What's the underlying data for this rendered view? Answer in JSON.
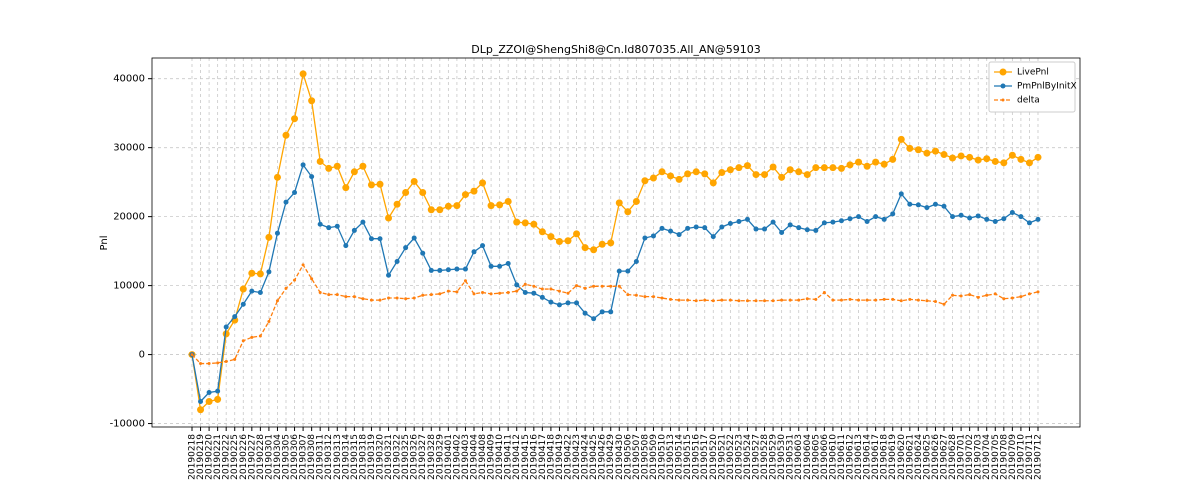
{
  "chart_data": {
    "type": "line",
    "title": "DLp_ZZOI@ShengShi8@Cn.Id807035.All_AN@59103",
    "y_label": "Pnl",
    "categories": [
      "20190218",
      "20190219",
      "20190220",
      "20190221",
      "20190222",
      "20190225",
      "20190226",
      "20190227",
      "20190228",
      "20190301",
      "20190304",
      "20190305",
      "20190306",
      "20190307",
      "20190308",
      "20190311",
      "20190312",
      "20190313",
      "20190314",
      "20190315",
      "20190318",
      "20190319",
      "20190320",
      "20190321",
      "20190322",
      "20190325",
      "20190326",
      "20190327",
      "20190328",
      "20190329",
      "20190401",
      "20190402",
      "20190403",
      "20190404",
      "20190408",
      "20190409",
      "20190410",
      "20190411",
      "20190412",
      "20190415",
      "20190416",
      "20190417",
      "20190418",
      "20190419",
      "20190422",
      "20190423",
      "20190424",
      "20190425",
      "20190426",
      "20190429",
      "20190430",
      "20190506",
      "20190507",
      "20190508",
      "20190509",
      "20190510",
      "20190513",
      "20190514",
      "20190515",
      "20190516",
      "20190517",
      "20190520",
      "20190521",
      "20190522",
      "20190523",
      "20190524",
      "20190527",
      "20190528",
      "20190529",
      "20190530",
      "20190531",
      "20190603",
      "20190604",
      "20190605",
      "20190606",
      "20190610",
      "20190611",
      "20190612",
      "20190613",
      "20190614",
      "20190617",
      "20190618",
      "20190619",
      "20190620",
      "20190621",
      "20190624",
      "20190625",
      "20190626",
      "20190627",
      "20190628",
      "20190701",
      "20190702",
      "20190703",
      "20190704",
      "20190705",
      "20190708",
      "20190709",
      "20190710",
      "20190711",
      "20190712"
    ],
    "series": [
      {
        "name": "LivePnl",
        "color": "#ffa500",
        "linestyle": "solid",
        "marker_size": 7,
        "values": [
          0,
          -8000,
          -6800,
          -6500,
          3000,
          5000,
          9500,
          11800,
          11700,
          17000,
          25700,
          31800,
          34200,
          40700,
          36800,
          28000,
          27000,
          27300,
          24200,
          26500,
          27300,
          24600,
          24700,
          19800,
          21800,
          23500,
          25100,
          23500,
          21000,
          21000,
          21500,
          21600,
          23200,
          23700,
          24900,
          21600,
          21700,
          22200,
          19200,
          19100,
          18900,
          17800,
          17100,
          16400,
          16500,
          17500,
          15500,
          15200,
          16000,
          16200,
          22000,
          20700,
          22200,
          25200,
          25600,
          26500,
          25900,
          25400,
          26200,
          26500,
          26200,
          24900,
          26400,
          26800,
          27100,
          27400,
          26100,
          26100,
          27200,
          25700,
          26800,
          26500,
          26100,
          27100,
          27100,
          27100,
          27000,
          27500,
          27900,
          27300,
          27900,
          27600,
          28300,
          31200,
          29900,
          29700,
          29200,
          29500,
          29000,
          28500,
          28800,
          28600,
          28200,
          28400,
          28000,
          27800,
          28900,
          28300,
          27800,
          28600
        ]
      },
      {
        "name": "PmPnlByInitX",
        "color": "#1f77b4",
        "linestyle": "solid",
        "marker_size": 5,
        "values": [
          0,
          -6800,
          -5500,
          -5300,
          4000,
          5500,
          7300,
          9200,
          9000,
          12000,
          17600,
          22100,
          23500,
          27500,
          25800,
          18900,
          18400,
          18600,
          15800,
          18000,
          19200,
          16800,
          16800,
          11500,
          13500,
          15500,
          16900,
          14700,
          12200,
          12200,
          12300,
          12400,
          12400,
          14900,
          15800,
          12800,
          12800,
          13200,
          10100,
          9000,
          8900,
          8300,
          7600,
          7200,
          7500,
          7500,
          6000,
          5200,
          6200,
          6200,
          12100,
          12100,
          13500,
          16900,
          17200,
          18300,
          17900,
          17400,
          18300,
          18500,
          18400,
          17100,
          18500,
          19000,
          19300,
          19600,
          18200,
          18200,
          19200,
          17700,
          18800,
          18400,
          18100,
          18000,
          19100,
          19200,
          19400,
          19700,
          20000,
          19300,
          20000,
          19600,
          20400,
          23300,
          21800,
          21700,
          21300,
          21800,
          21500,
          20000,
          20200,
          19800,
          20100,
          19600,
          19300,
          19700,
          20600,
          20000,
          19100,
          19600
        ]
      },
      {
        "name": "delta",
        "color": "#ff7f0e",
        "linestyle": "dashed",
        "marker_size": 3,
        "values": [
          0,
          -1300,
          -1300,
          -1200,
          -1000,
          -700,
          2000,
          2500,
          2700,
          4800,
          7800,
          9600,
          10800,
          13000,
          11000,
          9000,
          8700,
          8700,
          8400,
          8400,
          8100,
          7900,
          7900,
          8200,
          8200,
          8100,
          8200,
          8600,
          8700,
          8800,
          9200,
          9100,
          10700,
          8800,
          9000,
          8800,
          8900,
          9000,
          9200,
          10200,
          9900,
          9500,
          9500,
          9200,
          8900,
          10000,
          9600,
          9900,
          9900,
          9900,
          9900,
          8700,
          8600,
          8400,
          8400,
          8200,
          8000,
          7900,
          7900,
          7800,
          7900,
          7800,
          7900,
          7900,
          7800,
          7800,
          7800,
          7800,
          7800,
          7900,
          7900,
          7900,
          8100,
          8000,
          9000,
          7900,
          7900,
          8000,
          7900,
          7900,
          7900,
          8000,
          8000,
          7800,
          8000,
          7900,
          7800,
          7700,
          7300,
          8600,
          8500,
          8700,
          8300,
          8600,
          8800,
          8100,
          8200,
          8400,
          8800,
          9100
        ]
      }
    ],
    "ylim": [
      -10500,
      43000
    ],
    "yticks": [
      -10000,
      0,
      10000,
      20000,
      30000,
      40000
    ],
    "grid": true,
    "legend": "upper right"
  }
}
